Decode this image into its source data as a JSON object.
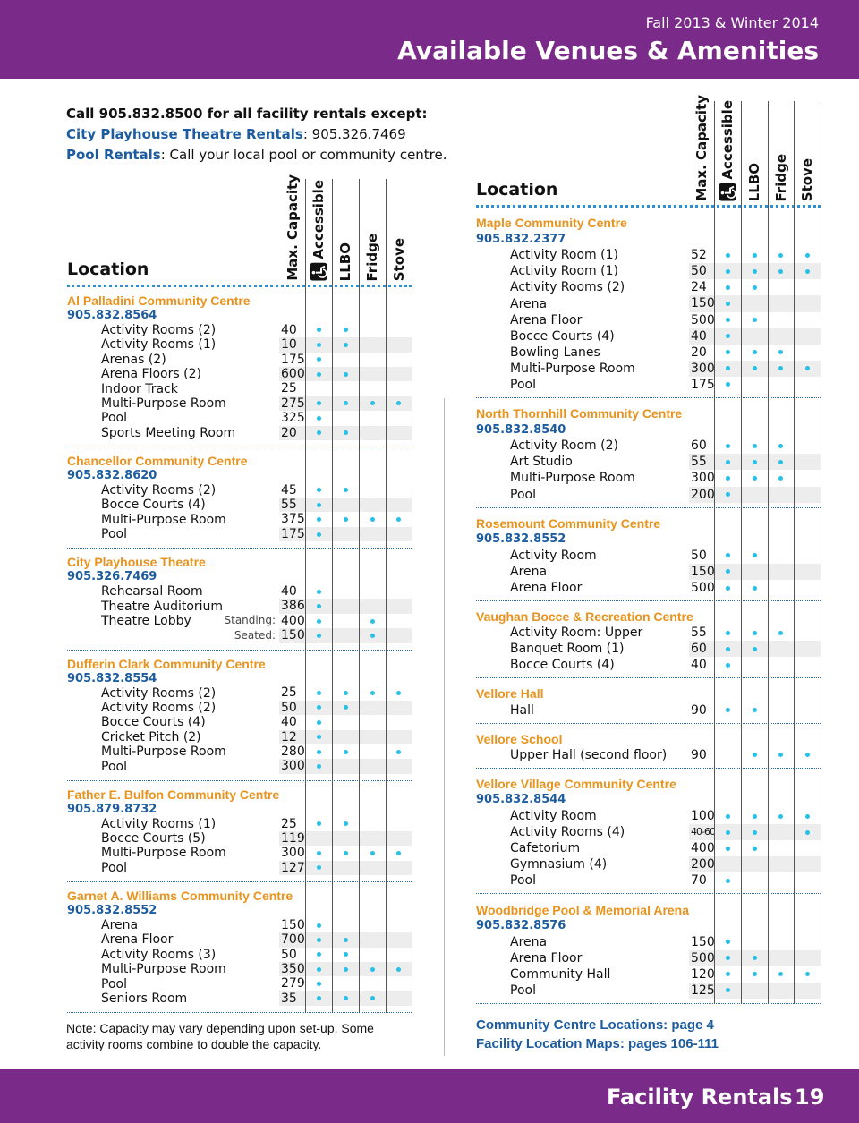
{
  "header": {
    "season": "Fall 2013 & Winter 2014",
    "title": "Available Venues & Amenities"
  },
  "intro": {
    "line": "Call 905.832.8500 for all facility rentals except:",
    "playhouse_label": "City Playhouse Theatre Rentals",
    "playhouse_text": ": 905.326.7469",
    "pool_label": "Pool Rentals",
    "pool_text": ": Call your local pool or community centre."
  },
  "columns": {
    "location": "Location",
    "capacity": "Max. Capacity",
    "accessible": "Accessible",
    "llbo": "LLBO",
    "fridge": "Fridge",
    "stove": "Stove"
  },
  "left": {
    "venues": [
      {
        "name": "Al Palladini Community Centre",
        "phone": "905.832.8564",
        "rooms": [
          {
            "name": "Activity Rooms (2)",
            "cap": 40,
            "amenities": [
              true,
              true,
              false,
              false
            ]
          },
          {
            "name": "Activity Rooms (1)",
            "cap": 10,
            "amenities": [
              true,
              true,
              false,
              false
            ]
          },
          {
            "name": "Arenas (2)",
            "cap": 175,
            "amenities": [
              true,
              false,
              false,
              false
            ]
          },
          {
            "name": "Arena Floors (2)",
            "cap": 600,
            "amenities": [
              true,
              true,
              false,
              false
            ]
          },
          {
            "name": "Indoor Track",
            "cap": 25,
            "amenities": [
              false,
              false,
              false,
              false
            ]
          },
          {
            "name": "Multi-Purpose Room",
            "cap": 275,
            "amenities": [
              true,
              true,
              true,
              true
            ]
          },
          {
            "name": "Pool",
            "cap": 325,
            "amenities": [
              true,
              false,
              false,
              false
            ]
          },
          {
            "name": "Sports Meeting Room",
            "cap": 20,
            "amenities": [
              true,
              true,
              false,
              false
            ]
          }
        ]
      },
      {
        "name": "Chancellor Community Centre",
        "phone": "905.832.8620",
        "rooms": [
          {
            "name": "Activity Rooms (2)",
            "cap": 45,
            "amenities": [
              true,
              true,
              false,
              false
            ]
          },
          {
            "name": "Bocce Courts (4)",
            "cap": 55,
            "amenities": [
              true,
              false,
              false,
              false
            ]
          },
          {
            "name": "Multi-Purpose Room",
            "cap": 375,
            "amenities": [
              true,
              true,
              true,
              true
            ]
          },
          {
            "name": "Pool",
            "cap": 175,
            "amenities": [
              true,
              false,
              false,
              false
            ]
          }
        ]
      },
      {
        "name": "City Playhouse Theatre",
        "phone": "905.326.7469",
        "rooms": [
          {
            "name": "Rehearsal Room",
            "cap": 40,
            "amenities": [
              true,
              false,
              false,
              false
            ]
          },
          {
            "name": "Theatre Auditorium",
            "cap": 386,
            "amenities": [
              true,
              false,
              false,
              false
            ]
          },
          {
            "name": "Theatre Lobby",
            "note": "Standing:",
            "cap": 400,
            "amenities": [
              true,
              false,
              true,
              false
            ]
          },
          {
            "note": "Seated:",
            "cap": 150,
            "amenities": [
              true,
              false,
              true,
              false
            ]
          }
        ]
      },
      {
        "name": "Dufferin Clark Community Centre",
        "phone": "905.832.8554",
        "rooms": [
          {
            "name": "Activity Rooms (2)",
            "cap": 25,
            "amenities": [
              true,
              true,
              true,
              true
            ]
          },
          {
            "name": "Activity Rooms (2)",
            "cap": 50,
            "amenities": [
              true,
              true,
              false,
              false
            ]
          },
          {
            "name": "Bocce Courts (4)",
            "cap": 40,
            "amenities": [
              true,
              false,
              false,
              false
            ]
          },
          {
            "name": "Cricket Pitch (2)",
            "cap": 12,
            "amenities": [
              true,
              false,
              false,
              false
            ]
          },
          {
            "name": "Multi-Purpose Room",
            "cap": 280,
            "amenities": [
              true,
              true,
              false,
              true
            ]
          },
          {
            "name": "Pool",
            "cap": 300,
            "amenities": [
              true,
              false,
              false,
              false
            ]
          }
        ]
      },
      {
        "name": "Father E. Bulfon Community Centre",
        "phone": "905.879.8732",
        "rooms": [
          {
            "name": "Activity Rooms (1)",
            "cap": 25,
            "amenities": [
              true,
              true,
              false,
              false
            ]
          },
          {
            "name": "Bocce Courts (5)",
            "cap": 119,
            "amenities": [
              false,
              false,
              false,
              false
            ]
          },
          {
            "name": "Multi-Purpose Room",
            "cap": 300,
            "amenities": [
              true,
              true,
              true,
              true
            ]
          },
          {
            "name": "Pool",
            "cap": 127,
            "amenities": [
              true,
              false,
              false,
              false
            ]
          }
        ]
      },
      {
        "name": "Garnet A. Williams Community Centre",
        "phone": "905.832.8552",
        "rooms": [
          {
            "name": "Arena",
            "cap": 150,
            "amenities": [
              true,
              false,
              false,
              false
            ]
          },
          {
            "name": "Arena Floor",
            "cap": 700,
            "amenities": [
              true,
              true,
              false,
              false
            ]
          },
          {
            "name": "Activity Rooms (3)",
            "cap": 50,
            "amenities": [
              true,
              true,
              false,
              false
            ]
          },
          {
            "name": "Multi-Purpose Room",
            "cap": 350,
            "amenities": [
              true,
              true,
              true,
              true
            ]
          },
          {
            "name": "Pool",
            "cap": 279,
            "amenities": [
              true,
              false,
              false,
              false
            ]
          },
          {
            "name": "Seniors Room",
            "cap": 35,
            "amenities": [
              true,
              true,
              true,
              false
            ]
          }
        ]
      }
    ]
  },
  "right": {
    "venues": [
      {
        "name": "Maple Community Centre",
        "phone": "905.832.2377",
        "rooms": [
          {
            "name": "Activity Room (1)",
            "cap": 52,
            "amenities": [
              true,
              true,
              true,
              true
            ]
          },
          {
            "name": "Activity Room (1)",
            "cap": 50,
            "amenities": [
              true,
              true,
              true,
              true
            ]
          },
          {
            "name": "Activity Rooms (2)",
            "cap": 24,
            "amenities": [
              true,
              true,
              false,
              false
            ]
          },
          {
            "name": "Arena",
            "cap": 150,
            "amenities": [
              true,
              false,
              false,
              false
            ]
          },
          {
            "name": "Arena Floor",
            "cap": 500,
            "amenities": [
              true,
              true,
              false,
              false
            ]
          },
          {
            "name": "Bocce Courts (4)",
            "cap": 40,
            "amenities": [
              true,
              false,
              false,
              false
            ]
          },
          {
            "name": "Bowling Lanes",
            "cap": 20,
            "amenities": [
              true,
              true,
              true,
              false
            ]
          },
          {
            "name": "Multi-Purpose Room",
            "cap": 300,
            "amenities": [
              true,
              true,
              true,
              true
            ]
          },
          {
            "name": "Pool",
            "cap": 175,
            "amenities": [
              true,
              false,
              false,
              false
            ]
          }
        ]
      },
      {
        "name": "North Thornhill Community Centre",
        "phone": "905.832.8540",
        "rooms": [
          {
            "name": "Activity Room (2)",
            "cap": 60,
            "amenities": [
              true,
              true,
              true,
              false
            ]
          },
          {
            "name": "Art Studio",
            "cap": 55,
            "amenities": [
              true,
              true,
              true,
              false
            ]
          },
          {
            "name": "Multi-Purpose Room",
            "cap": 300,
            "amenities": [
              true,
              true,
              true,
              false
            ]
          },
          {
            "name": "Pool",
            "cap": 200,
            "amenities": [
              true,
              false,
              false,
              false
            ]
          }
        ]
      },
      {
        "name": "Rosemount Community Centre",
        "phone": "905.832.8552",
        "rooms": [
          {
            "name": "Activity Room",
            "cap": 50,
            "amenities": [
              true,
              true,
              false,
              false
            ]
          },
          {
            "name": "Arena",
            "cap": 150,
            "amenities": [
              true,
              false,
              false,
              false
            ]
          },
          {
            "name": "Arena Floor",
            "cap": 500,
            "amenities": [
              true,
              true,
              false,
              false
            ]
          }
        ]
      },
      {
        "name": "Vaughan Bocce & Recreation Centre",
        "rooms": [
          {
            "name": "Activity Room: Upper",
            "cap": 55,
            "amenities": [
              true,
              true,
              true,
              false
            ]
          },
          {
            "name": "Banquet Room (1)",
            "cap": 60,
            "amenities": [
              true,
              true,
              false,
              false
            ]
          },
          {
            "name": "Bocce Courts (4)",
            "cap": 40,
            "amenities": [
              true,
              false,
              false,
              false
            ]
          }
        ]
      },
      {
        "name": "Vellore Hall",
        "rooms": [
          {
            "name": "Hall",
            "cap": 90,
            "amenities": [
              true,
              true,
              false,
              false
            ]
          }
        ]
      },
      {
        "name": "Vellore School",
        "rooms": [
          {
            "name": "Upper Hall (second floor)",
            "cap": 90,
            "amenities": [
              false,
              true,
              true,
              true
            ]
          }
        ]
      },
      {
        "name": "Vellore Village Community Centre",
        "phone": "905.832.8544",
        "rooms": [
          {
            "name": "Activity Room",
            "cap": 100,
            "amenities": [
              true,
              true,
              true,
              true
            ]
          },
          {
            "name": "Activity Rooms (4)",
            "cap": "40-60",
            "amenities": [
              true,
              true,
              false,
              true
            ]
          },
          {
            "name": "Cafetorium",
            "cap": 400,
            "amenities": [
              true,
              true,
              false,
              false
            ]
          },
          {
            "name": "Gymnasium (4)",
            "cap": 200,
            "amenities": [
              false,
              false,
              false,
              false
            ]
          },
          {
            "name": "Pool",
            "cap": 70,
            "amenities": [
              true,
              false,
              false,
              false
            ]
          }
        ]
      },
      {
        "name": "Woodbridge Pool & Memorial Arena",
        "phone": "905.832.8576",
        "rooms": [
          {
            "name": "Arena",
            "cap": 150,
            "amenities": [
              true,
              false,
              false,
              false
            ]
          },
          {
            "name": "Arena Floor",
            "cap": 500,
            "amenities": [
              true,
              true,
              false,
              false
            ]
          },
          {
            "name": "Community Hall",
            "cap": 120,
            "amenities": [
              true,
              true,
              true,
              true
            ]
          },
          {
            "name": "Pool",
            "cap": 125,
            "amenities": [
              true,
              false,
              false,
              false
            ]
          }
        ]
      }
    ]
  },
  "note": "Note: Capacity may vary depending upon set-up. Some activity rooms combine to double the capacity.",
  "links": [
    "Community Centre Locations: page 4",
    "Facility Location Maps: pages 106-111"
  ],
  "footer": {
    "section": "Facility Rentals",
    "page": 19
  }
}
